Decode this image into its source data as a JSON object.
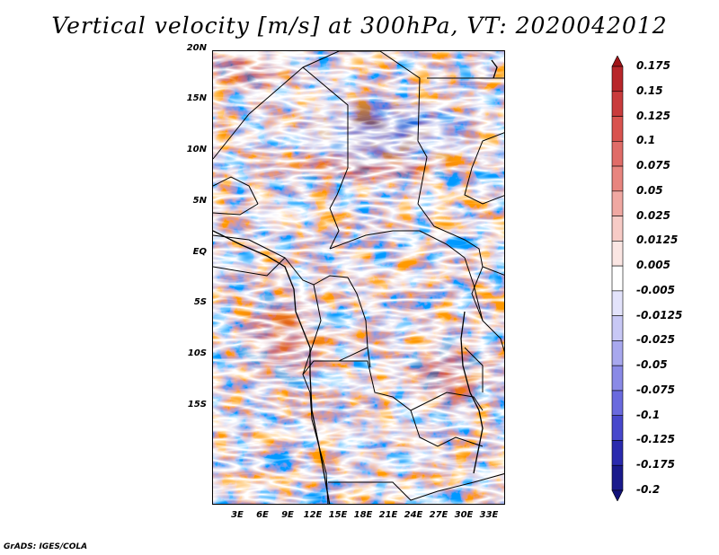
{
  "title": "Vertical velocity [m/s] at 300hPa, VT: 2020042012",
  "footer": "GrADS: IGES/COLA",
  "lat_labels": [
    "20N",
    "15N",
    "10N",
    "5N",
    "EQ",
    "5S",
    "10S",
    "15S"
  ],
  "lon_labels": [
    "3E",
    "6E",
    "9E",
    "12E",
    "15E",
    "18E",
    "21E",
    "24E",
    "27E",
    "30E",
    "33E"
  ],
  "colorbar": {
    "labels": [
      "0.175",
      "0.15",
      "0.125",
      "0.1",
      "0.075",
      "0.05",
      "0.025",
      "0.0125",
      "0.005",
      "-0.005",
      "-0.0125",
      "-0.025",
      "-0.05",
      "-0.075",
      "-0.1",
      "-0.125",
      "-0.175",
      "-0.2"
    ],
    "colors": [
      "#a01418",
      "#b8262a",
      "#c93b3c",
      "#d9534f",
      "#e06c68",
      "#e8857f",
      "#f0a8a2",
      "#f7cbc6",
      "#fbe6e3",
      "#ffffff",
      "#e3e3fb",
      "#c8c8f5",
      "#a8a8ee",
      "#8a8ae6",
      "#6a6ade",
      "#4848cc",
      "#2a2aae",
      "#1a1a8c",
      "#12127a"
    ]
  }
}
